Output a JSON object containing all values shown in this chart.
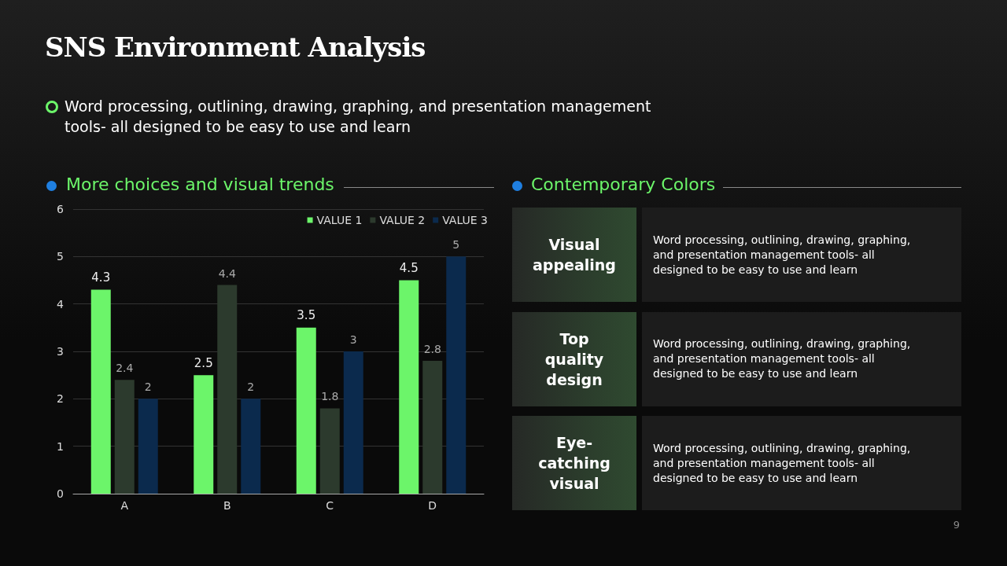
{
  "chart_data": [
    {
      "type": "other",
      "title": "SNS Environment Analysis",
      "subtitle": "Word processing, outlining, drawing, graphing, and presentation management tools- all designed to be easy to use and learn"
    },
    {
      "type": "bar",
      "title": "More choices and visual trends",
      "categories": [
        "A",
        "B",
        "C",
        "D"
      ],
      "series": [
        {
          "name": "VALUE 1",
          "color": "#6cf56a",
          "values": [
            4.3,
            2.5,
            3.5,
            4.5
          ]
        },
        {
          "name": "VALUE 2",
          "color": "#2c3a2d",
          "values": [
            2.4,
            4.4,
            1.8,
            2.8
          ]
        },
        {
          "name": "VALUE 3",
          "color": "#0b2a4d",
          "values": [
            2,
            2,
            3,
            5
          ]
        }
      ],
      "ylim": [
        0,
        6
      ],
      "yticks": [
        0,
        1,
        2,
        3,
        4,
        5,
        6
      ],
      "grid": "y",
      "legend": "top right",
      "data_labels": true
    },
    {
      "type": "other",
      "title": "Contemporary Colors",
      "annotations": [
        "Visual appealing",
        "Word processing, outlining, drawing, graphing, and presentation management tools- all designed to be easy to use and learn",
        "Top quality design",
        "Word processing, outlining, drawing, graphing, and presentation management tools- all designed to be easy to use and learn",
        "Eye-catching visual",
        "Word processing, outlining, drawing, graphing, and presentation management tools- all designed to be easy to use and learn",
        "9"
      ]
    }
  ]
}
